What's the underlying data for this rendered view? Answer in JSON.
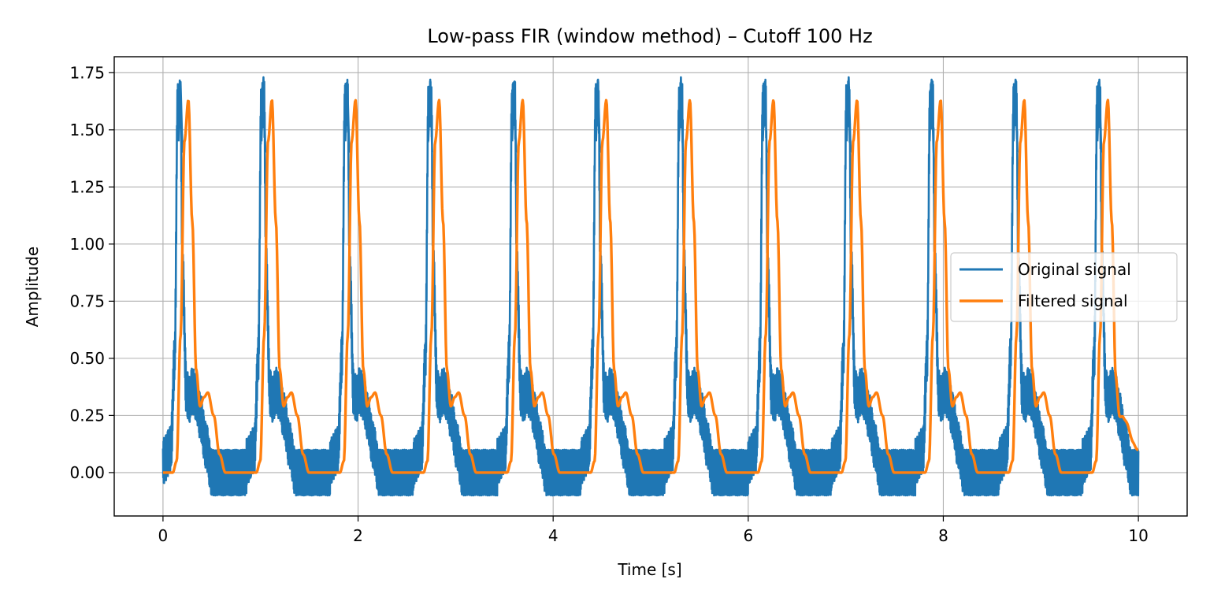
{
  "chart_data": {
    "type": "line",
    "title": "Low-pass FIR (window method) – Cutoff 100 Hz",
    "xlabel": "Time [s]",
    "ylabel": "Amplitude",
    "xlim": [
      -0.5,
      10.5
    ],
    "ylim": [
      -0.19,
      1.82
    ],
    "x_ticks": [
      0,
      2,
      4,
      6,
      8,
      10
    ],
    "x_tick_labels": [
      "0",
      "2",
      "4",
      "6",
      "8",
      "10"
    ],
    "y_ticks": [
      0.0,
      0.25,
      0.5,
      0.75,
      1.0,
      1.25,
      1.5,
      1.75
    ],
    "y_tick_labels": [
      "0.00",
      "0.25",
      "0.50",
      "0.75",
      "1.00",
      "1.25",
      "1.50",
      "1.75"
    ],
    "grid": true,
    "legend_position": "center-right",
    "colors": {
      "original": "#1f77b4",
      "filtered": "#ff7f0e",
      "grid": "#b0b0b0"
    },
    "beat_period_s": 0.857,
    "duration_s": 10,
    "high_freq_noise_amplitude": 0.1,
    "series": [
      {
        "name": "Original signal",
        "color": "#1f77b4",
        "style": "noisy ECG-like periodic signal with ±0.1 high-frequency ripple",
        "beat_template": {
          "t": [
            0.0,
            0.08,
            0.12,
            0.15,
            0.18,
            0.2,
            0.24,
            0.27,
            0.3,
            0.34,
            0.38,
            0.44,
            0.5,
            0.56,
            0.857
          ],
          "y": [
            0.05,
            0.1,
            0.5,
            1.6,
            1.62,
            0.9,
            0.35,
            0.32,
            0.36,
            0.33,
            0.25,
            0.12,
            0.0,
            0.0,
            0.0
          ]
        },
        "peaks_t": [
          0.18,
          1.03,
          1.89,
          2.74,
          3.6,
          4.46,
          5.31,
          6.17,
          7.03,
          7.88,
          8.74,
          9.6
        ],
        "peaks_y": [
          1.71,
          1.73,
          1.71,
          1.72,
          1.71,
          1.72,
          1.73,
          1.71,
          1.73,
          1.72,
          1.72,
          1.72
        ]
      },
      {
        "name": "Filtered signal",
        "color": "#ff7f0e",
        "style": "smooth, delayed copy of the original",
        "beat_template": {
          "t": [
            0.0,
            0.1,
            0.14,
            0.18,
            0.22,
            0.26,
            0.3,
            0.34,
            0.38,
            0.42,
            0.46,
            0.52,
            0.58,
            0.64,
            0.857
          ],
          "y": [
            0.0,
            0.0,
            0.05,
            0.6,
            1.45,
            1.63,
            1.1,
            0.45,
            0.29,
            0.33,
            0.35,
            0.25,
            0.08,
            0.0,
            0.0
          ]
        },
        "start_value": 0.0,
        "end_value": 0.1,
        "peak_value": 1.63
      }
    ]
  }
}
